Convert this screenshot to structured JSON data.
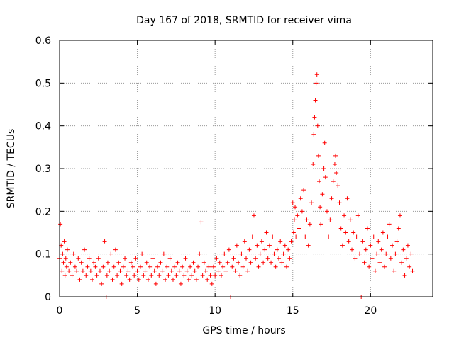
{
  "chart_data": {
    "type": "scatter",
    "title": "Day 167 of 2018, SRMTID for receiver vima",
    "xlabel": "GPS time / hours",
    "ylabel": "SRMTID / TECUs",
    "xlim": [
      0,
      24
    ],
    "ylim": [
      0,
      0.6
    ],
    "x_ticks": [
      0,
      5,
      10,
      15,
      20
    ],
    "y_ticks": [
      0,
      0.1,
      0.2,
      0.3,
      0.4,
      0.5,
      0.6
    ],
    "grid": true,
    "marker": "+",
    "series": [
      {
        "name": "SRMTID",
        "color": "#ff0000",
        "points": [
          [
            0.0,
            0.09
          ],
          [
            0.05,
            0.17
          ],
          [
            0.1,
            0.12
          ],
          [
            0.15,
            0.06
          ],
          [
            0.2,
            0.1
          ],
          [
            0.25,
            0.08
          ],
          [
            0.3,
            0.13
          ],
          [
            0.35,
            0.05
          ],
          [
            0.4,
            0.09
          ],
          [
            0.45,
            0.07
          ],
          [
            0.5,
            0.11
          ],
          [
            0.6,
            0.06
          ],
          [
            0.7,
            0.08
          ],
          [
            0.8,
            0.05
          ],
          [
            0.9,
            0.1
          ],
          [
            1.0,
            0.07
          ],
          [
            1.1,
            0.06
          ],
          [
            1.2,
            0.09
          ],
          [
            1.3,
            0.04
          ],
          [
            1.4,
            0.08
          ],
          [
            1.5,
            0.06
          ],
          [
            1.6,
            0.11
          ],
          [
            1.7,
            0.05
          ],
          [
            1.8,
            0.07
          ],
          [
            1.9,
            0.09
          ],
          [
            2.0,
            0.06
          ],
          [
            2.1,
            0.04
          ],
          [
            2.2,
            0.08
          ],
          [
            2.3,
            0.07
          ],
          [
            2.4,
            0.05
          ],
          [
            2.5,
            0.09
          ],
          [
            2.6,
            0.06
          ],
          [
            2.7,
            0.03
          ],
          [
            2.8,
            0.07
          ],
          [
            2.9,
            0.13
          ],
          [
            3.0,
            0.0
          ],
          [
            3.05,
            0.05
          ],
          [
            3.1,
            0.08
          ],
          [
            3.2,
            0.06
          ],
          [
            3.3,
            0.1
          ],
          [
            3.4,
            0.04
          ],
          [
            3.5,
            0.07
          ],
          [
            3.6,
            0.11
          ],
          [
            3.7,
            0.05
          ],
          [
            3.8,
            0.08
          ],
          [
            3.9,
            0.06
          ],
          [
            4.0,
            0.03
          ],
          [
            4.1,
            0.07
          ],
          [
            4.2,
            0.09
          ],
          [
            4.3,
            0.05
          ],
          [
            4.4,
            0.06
          ],
          [
            4.5,
            0.04
          ],
          [
            4.6,
            0.08
          ],
          [
            4.7,
            0.07
          ],
          [
            4.8,
            0.05
          ],
          [
            4.9,
            0.09
          ],
          [
            5.0,
            0.06
          ],
          [
            5.1,
            0.04
          ],
          [
            5.2,
            0.07
          ],
          [
            5.3,
            0.1
          ],
          [
            5.4,
            0.05
          ],
          [
            5.5,
            0.06
          ],
          [
            5.6,
            0.08
          ],
          [
            5.7,
            0.04
          ],
          [
            5.8,
            0.07
          ],
          [
            5.9,
            0.05
          ],
          [
            6.0,
            0.09
          ],
          [
            6.1,
            0.06
          ],
          [
            6.2,
            0.03
          ],
          [
            6.3,
            0.07
          ],
          [
            6.4,
            0.05
          ],
          [
            6.5,
            0.08
          ],
          [
            6.6,
            0.06
          ],
          [
            6.7,
            0.1
          ],
          [
            6.8,
            0.04
          ],
          [
            6.9,
            0.07
          ],
          [
            7.0,
            0.05
          ],
          [
            7.1,
            0.09
          ],
          [
            7.2,
            0.06
          ],
          [
            7.3,
            0.04
          ],
          [
            7.4,
            0.07
          ],
          [
            7.5,
            0.05
          ],
          [
            7.6,
            0.08
          ],
          [
            7.7,
            0.06
          ],
          [
            7.8,
            0.03
          ],
          [
            7.9,
            0.07
          ],
          [
            8.0,
            0.05
          ],
          [
            8.1,
            0.09
          ],
          [
            8.2,
            0.06
          ],
          [
            8.3,
            0.04
          ],
          [
            8.4,
            0.07
          ],
          [
            8.5,
            0.05
          ],
          [
            8.6,
            0.08
          ],
          [
            8.7,
            0.06
          ],
          [
            8.8,
            0.04
          ],
          [
            8.9,
            0.07
          ],
          [
            9.0,
            0.1
          ],
          [
            9.1,
            0.175
          ],
          [
            9.2,
            0.05
          ],
          [
            9.3,
            0.08
          ],
          [
            9.4,
            0.06
          ],
          [
            9.5,
            0.04
          ],
          [
            9.6,
            0.07
          ],
          [
            9.7,
            0.05
          ],
          [
            9.8,
            0.03
          ],
          [
            9.9,
            0.07
          ],
          [
            10.0,
            0.05
          ],
          [
            10.1,
            0.09
          ],
          [
            10.2,
            0.06
          ],
          [
            10.3,
            0.08
          ],
          [
            10.4,
            0.05
          ],
          [
            10.5,
            0.07
          ],
          [
            10.6,
            0.1
          ],
          [
            10.7,
            0.06
          ],
          [
            10.8,
            0.08
          ],
          [
            10.9,
            0.11
          ],
          [
            11.0,
            0.0
          ],
          [
            11.1,
            0.07
          ],
          [
            11.2,
            0.09
          ],
          [
            11.3,
            0.06
          ],
          [
            11.4,
            0.12
          ],
          [
            11.5,
            0.08
          ],
          [
            11.6,
            0.05
          ],
          [
            11.7,
            0.1
          ],
          [
            11.8,
            0.07
          ],
          [
            11.9,
            0.13
          ],
          [
            12.0,
            0.09
          ],
          [
            12.1,
            0.06
          ],
          [
            12.2,
            0.11
          ],
          [
            12.3,
            0.08
          ],
          [
            12.4,
            0.14
          ],
          [
            12.5,
            0.19
          ],
          [
            12.6,
            0.09
          ],
          [
            12.7,
            0.12
          ],
          [
            12.8,
            0.07
          ],
          [
            12.9,
            0.1
          ],
          [
            13.0,
            0.13
          ],
          [
            13.1,
            0.08
          ],
          [
            13.2,
            0.11
          ],
          [
            13.3,
            0.15
          ],
          [
            13.4,
            0.09
          ],
          [
            13.5,
            0.12
          ],
          [
            13.6,
            0.08
          ],
          [
            13.7,
            0.14
          ],
          [
            13.8,
            0.1
          ],
          [
            13.9,
            0.07
          ],
          [
            14.0,
            0.11
          ],
          [
            14.1,
            0.09
          ],
          [
            14.2,
            0.13
          ],
          [
            14.3,
            0.08
          ],
          [
            14.4,
            0.1
          ],
          [
            14.5,
            0.12
          ],
          [
            14.6,
            0.07
          ],
          [
            14.7,
            0.11
          ],
          [
            14.8,
            0.09
          ],
          [
            14.9,
            0.13
          ],
          [
            15.0,
            0.22
          ],
          [
            15.05,
            0.15
          ],
          [
            15.1,
            0.18
          ],
          [
            15.15,
            0.21
          ],
          [
            15.2,
            0.14
          ],
          [
            15.3,
            0.19
          ],
          [
            15.4,
            0.16
          ],
          [
            15.5,
            0.23
          ],
          [
            15.6,
            0.2
          ],
          [
            15.7,
            0.25
          ],
          [
            15.8,
            0.14
          ],
          [
            15.9,
            0.18
          ],
          [
            16.0,
            0.12
          ],
          [
            16.1,
            0.17
          ],
          [
            16.2,
            0.22
          ],
          [
            16.3,
            0.31
          ],
          [
            16.35,
            0.38
          ],
          [
            16.4,
            0.42
          ],
          [
            16.45,
            0.46
          ],
          [
            16.5,
            0.5
          ],
          [
            16.55,
            0.52
          ],
          [
            16.6,
            0.4
          ],
          [
            16.65,
            0.33
          ],
          [
            16.7,
            0.27
          ],
          [
            16.75,
            0.21
          ],
          [
            16.8,
            0.17
          ],
          [
            16.9,
            0.24
          ],
          [
            17.0,
            0.3
          ],
          [
            17.05,
            0.36
          ],
          [
            17.1,
            0.28
          ],
          [
            17.2,
            0.2
          ],
          [
            17.3,
            0.14
          ],
          [
            17.4,
            0.18
          ],
          [
            17.5,
            0.23
          ],
          [
            17.6,
            0.27
          ],
          [
            17.7,
            0.31
          ],
          [
            17.75,
            0.33
          ],
          [
            17.8,
            0.29
          ],
          [
            17.9,
            0.26
          ],
          [
            18.0,
            0.22
          ],
          [
            18.1,
            0.16
          ],
          [
            18.2,
            0.12
          ],
          [
            18.3,
            0.19
          ],
          [
            18.4,
            0.15
          ],
          [
            18.5,
            0.23
          ],
          [
            18.6,
            0.13
          ],
          [
            18.7,
            0.18
          ],
          [
            18.8,
            0.11
          ],
          [
            18.9,
            0.15
          ],
          [
            19.0,
            0.09
          ],
          [
            19.1,
            0.14
          ],
          [
            19.2,
            0.19
          ],
          [
            19.3,
            0.1
          ],
          [
            19.4,
            0.0
          ],
          [
            19.5,
            0.13
          ],
          [
            19.6,
            0.08
          ],
          [
            19.7,
            0.11
          ],
          [
            19.8,
            0.16
          ],
          [
            19.9,
            0.07
          ],
          [
            20.0,
            0.12
          ],
          [
            20.1,
            0.09
          ],
          [
            20.2,
            0.14
          ],
          [
            20.3,
            0.06
          ],
          [
            20.4,
            0.1
          ],
          [
            20.5,
            0.13
          ],
          [
            20.6,
            0.08
          ],
          [
            20.7,
            0.11
          ],
          [
            20.8,
            0.15
          ],
          [
            20.9,
            0.07
          ],
          [
            21.0,
            0.1
          ],
          [
            21.1,
            0.14
          ],
          [
            21.2,
            0.17
          ],
          [
            21.3,
            0.09
          ],
          [
            21.4,
            0.12
          ],
          [
            21.5,
            0.06
          ],
          [
            21.6,
            0.1
          ],
          [
            21.7,
            0.13
          ],
          [
            21.8,
            0.16
          ],
          [
            21.9,
            0.19
          ],
          [
            22.0,
            0.08
          ],
          [
            22.1,
            0.11
          ],
          [
            22.2,
            0.05
          ],
          [
            22.3,
            0.09
          ],
          [
            22.4,
            0.12
          ],
          [
            22.5,
            0.07
          ],
          [
            22.6,
            0.1
          ],
          [
            22.7,
            0.06
          ]
        ]
      }
    ]
  }
}
